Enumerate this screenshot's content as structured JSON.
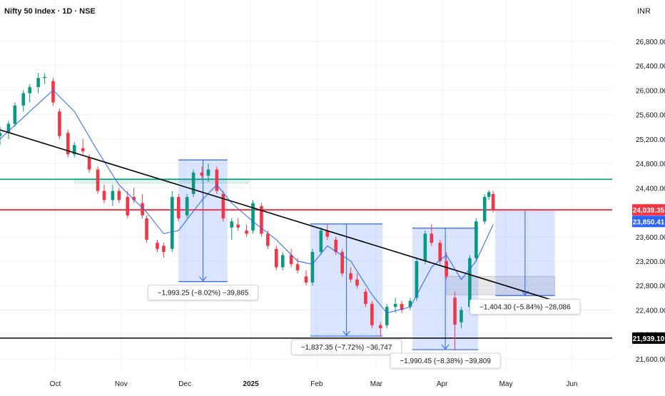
{
  "header": {
    "title": "Nifty 50 Index · 1D · NSE",
    "currency": "INR"
  },
  "colors": {
    "up": "#089981",
    "down": "#f23645",
    "ma": "#2962ff",
    "trendline": "#000000",
    "resistance": "#089981",
    "support_red": "#f23645",
    "support_black": "#000000",
    "measure_fill": "#2962ff",
    "badge_current": "#2962ff"
  },
  "chart_data": {
    "type": "candlestick",
    "symbol": "Nifty 50 Index",
    "interval": "1D",
    "exchange": "NSE",
    "ylim": [
      21400,
      27150
    ],
    "y_ticks": [
      21600,
      22000,
      22400,
      22800,
      23200,
      23600,
      24000,
      24400,
      24800,
      25200,
      25600,
      26000,
      26400,
      26800
    ],
    "y_tick_labels": [
      "21,600.00",
      "22,000.00",
      "22,400.00",
      "22,800.00",
      "23,200.00",
      "23,600.00",
      "24,000.00",
      "24,400.00",
      "24,800.00",
      "25,200.00",
      "25,600.00",
      "26,000.00",
      "26,400.00",
      "26,800.00"
    ],
    "x_ticks": [
      {
        "date": "2024-10-01",
        "label": "Oct",
        "bold": false
      },
      {
        "date": "2024-11-01",
        "label": "Nov",
        "bold": false
      },
      {
        "date": "2024-12-01",
        "label": "Dec",
        "bold": false
      },
      {
        "date": "2025-01-01",
        "label": "2025",
        "bold": true
      },
      {
        "date": "2025-02-01",
        "label": "Feb",
        "bold": false
      },
      {
        "date": "2025-03-01",
        "label": "Mar",
        "bold": false
      },
      {
        "date": "2025-04-01",
        "label": "Apr",
        "bold": false
      },
      {
        "date": "2025-05-01",
        "label": "May",
        "bold": false
      },
      {
        "date": "2025-06-01",
        "label": "Jun",
        "bold": false
      }
    ],
    "xlim": [
      "2024-09-05",
      "2025-06-20"
    ],
    "candles": [
      {
        "date": "2024-09-05",
        "o": 25250,
        "h": 25400,
        "l": 25100,
        "c": 25300
      },
      {
        "date": "2024-09-09",
        "o": 25300,
        "h": 25500,
        "l": 25200,
        "c": 25450
      },
      {
        "date": "2024-09-12",
        "o": 25450,
        "h": 25800,
        "l": 25400,
        "c": 25750
      },
      {
        "date": "2024-09-16",
        "o": 25750,
        "h": 26000,
        "l": 25650,
        "c": 25950
      },
      {
        "date": "2024-09-19",
        "o": 25950,
        "h": 26100,
        "l": 25800,
        "c": 26050
      },
      {
        "date": "2024-09-23",
        "o": 26050,
        "h": 26280,
        "l": 25950,
        "c": 26200
      },
      {
        "date": "2024-09-26",
        "o": 26200,
        "h": 26277,
        "l": 26100,
        "c": 26216
      },
      {
        "date": "2024-09-30",
        "o": 26150,
        "h": 26200,
        "l": 25750,
        "c": 25800
      },
      {
        "date": "2024-10-03",
        "o": 25650,
        "h": 25700,
        "l": 25200,
        "c": 25250
      },
      {
        "date": "2024-10-07",
        "o": 25300,
        "h": 25350,
        "l": 24900,
        "c": 24950
      },
      {
        "date": "2024-10-10",
        "o": 24950,
        "h": 25150,
        "l": 24900,
        "c": 25100
      },
      {
        "date": "2024-10-14",
        "o": 25050,
        "h": 25200,
        "l": 24950,
        "c": 25000
      },
      {
        "date": "2024-10-17",
        "o": 24900,
        "h": 24950,
        "l": 24650,
        "c": 24700
      },
      {
        "date": "2024-10-21",
        "o": 24700,
        "h": 24750,
        "l": 24300,
        "c": 24350
      },
      {
        "date": "2024-10-24",
        "o": 24350,
        "h": 24450,
        "l": 24150,
        "c": 24200
      },
      {
        "date": "2024-10-28",
        "o": 24200,
        "h": 24450,
        "l": 24100,
        "c": 24350
      },
      {
        "date": "2024-10-31",
        "o": 24350,
        "h": 24400,
        "l": 24150,
        "c": 24200
      },
      {
        "date": "2024-11-04",
        "o": 24250,
        "h": 24350,
        "l": 23900,
        "c": 23950
      },
      {
        "date": "2024-11-07",
        "o": 24250,
        "h": 24400,
        "l": 24150,
        "c": 24200
      },
      {
        "date": "2024-11-11",
        "o": 24150,
        "h": 24300,
        "l": 23900,
        "c": 23950
      },
      {
        "date": "2024-11-13",
        "o": 23900,
        "h": 23950,
        "l": 23500,
        "c": 23550
      },
      {
        "date": "2024-11-18",
        "o": 23500,
        "h": 23550,
        "l": 23350,
        "c": 23400
      },
      {
        "date": "2024-11-21",
        "o": 23450,
        "h": 23500,
        "l": 23260,
        "c": 23350
      },
      {
        "date": "2024-11-25",
        "o": 23400,
        "h": 24350,
        "l": 23350,
        "c": 24250
      },
      {
        "date": "2024-11-28",
        "o": 24250,
        "h": 24300,
        "l": 23850,
        "c": 23900
      },
      {
        "date": "2024-12-02",
        "o": 23950,
        "h": 24300,
        "l": 23900,
        "c": 24250
      },
      {
        "date": "2024-12-05",
        "o": 24300,
        "h": 24700,
        "l": 24250,
        "c": 24650
      },
      {
        "date": "2024-12-09",
        "o": 24650,
        "h": 24750,
        "l": 24550,
        "c": 24600
      },
      {
        "date": "2024-12-12",
        "o": 24600,
        "h": 24800,
        "l": 24500,
        "c": 24700
      },
      {
        "date": "2024-12-16",
        "o": 24700,
        "h": 24750,
        "l": 24300,
        "c": 24350
      },
      {
        "date": "2024-12-19",
        "o": 24300,
        "h": 24350,
        "l": 23850,
        "c": 23900
      },
      {
        "date": "2024-12-23",
        "o": 23750,
        "h": 23900,
        "l": 23550,
        "c": 23850
      },
      {
        "date": "2024-12-26",
        "o": 23800,
        "h": 23900,
        "l": 23700,
        "c": 23750
      },
      {
        "date": "2024-12-30",
        "o": 23700,
        "h": 23800,
        "l": 23600,
        "c": 23650
      },
      {
        "date": "2025-01-02",
        "o": 23700,
        "h": 24200,
        "l": 23650,
        "c": 24150
      },
      {
        "date": "2025-01-06",
        "o": 24100,
        "h": 24150,
        "l": 23600,
        "c": 23650
      },
      {
        "date": "2025-01-09",
        "o": 23650,
        "h": 23700,
        "l": 23400,
        "c": 23450
      },
      {
        "date": "2025-01-13",
        "o": 23400,
        "h": 23450,
        "l": 23050,
        "c": 23100
      },
      {
        "date": "2025-01-16",
        "o": 23100,
        "h": 23350,
        "l": 23050,
        "c": 23300
      },
      {
        "date": "2025-01-20",
        "o": 23300,
        "h": 23400,
        "l": 23100,
        "c": 23150
      },
      {
        "date": "2025-01-23",
        "o": 23150,
        "h": 23250,
        "l": 23000,
        "c": 23050
      },
      {
        "date": "2025-01-27",
        "o": 22950,
        "h": 23050,
        "l": 22800,
        "c": 22850
      },
      {
        "date": "2025-01-30",
        "o": 22850,
        "h": 23400,
        "l": 22800,
        "c": 23350
      },
      {
        "date": "2025-02-03",
        "o": 23350,
        "h": 23750,
        "l": 23300,
        "c": 23700
      },
      {
        "date": "2025-02-06",
        "o": 23700,
        "h": 23800,
        "l": 23550,
        "c": 23600
      },
      {
        "date": "2025-02-10",
        "o": 23550,
        "h": 23600,
        "l": 23300,
        "c": 23350
      },
      {
        "date": "2025-02-13",
        "o": 23350,
        "h": 23400,
        "l": 22950,
        "c": 23000
      },
      {
        "date": "2025-02-17",
        "o": 23000,
        "h": 23100,
        "l": 22850,
        "c": 22900
      },
      {
        "date": "2025-02-20",
        "o": 22900,
        "h": 23000,
        "l": 22750,
        "c": 22800
      },
      {
        "date": "2025-02-24",
        "o": 22700,
        "h": 22750,
        "l": 22450,
        "c": 22500
      },
      {
        "date": "2025-02-27",
        "o": 22500,
        "h": 22550,
        "l": 22100,
        "c": 22150
      },
      {
        "date": "2025-03-03",
        "o": 22150,
        "h": 22200,
        "l": 21964,
        "c": 22100
      },
      {
        "date": "2025-03-06",
        "o": 22150,
        "h": 22500,
        "l": 22100,
        "c": 22450
      },
      {
        "date": "2025-03-10",
        "o": 22450,
        "h": 22600,
        "l": 22350,
        "c": 22500
      },
      {
        "date": "2025-03-13",
        "o": 22500,
        "h": 22550,
        "l": 22350,
        "c": 22400
      },
      {
        "date": "2025-03-17",
        "o": 22450,
        "h": 22600,
        "l": 22400,
        "c": 22550
      },
      {
        "date": "2025-03-20",
        "o": 22600,
        "h": 23250,
        "l": 22550,
        "c": 23200
      },
      {
        "date": "2025-03-24",
        "o": 23200,
        "h": 23700,
        "l": 23150,
        "c": 23650
      },
      {
        "date": "2025-03-27",
        "o": 23650,
        "h": 23800,
        "l": 23450,
        "c": 23500
      },
      {
        "date": "2025-03-31",
        "o": 23500,
        "h": 23550,
        "l": 23150,
        "c": 23200
      },
      {
        "date": "2025-04-03",
        "o": 23200,
        "h": 23350,
        "l": 22900,
        "c": 22950
      },
      {
        "date": "2025-04-07",
        "o": 22600,
        "h": 22700,
        "l": 21743,
        "c": 22160
      },
      {
        "date": "2025-04-10",
        "o": 22200,
        "h": 22450,
        "l": 22100,
        "c": 22400
      },
      {
        "date": "2025-04-14",
        "o": 22450,
        "h": 23300,
        "l": 22400,
        "c": 23250
      },
      {
        "date": "2025-04-17",
        "o": 23250,
        "h": 23900,
        "l": 23200,
        "c": 23850
      },
      {
        "date": "2025-04-21",
        "o": 23850,
        "h": 24300,
        "l": 23800,
        "c": 24250
      },
      {
        "date": "2025-04-23",
        "o": 24250,
        "h": 24360,
        "l": 24200,
        "c": 24330
      },
      {
        "date": "2025-04-25",
        "o": 24300,
        "h": 24350,
        "l": 24000,
        "c": 24039
      }
    ],
    "moving_average": [
      {
        "date": "2024-09-05",
        "v": 25200
      },
      {
        "date": "2024-09-19",
        "v": 25650
      },
      {
        "date": "2024-09-30",
        "v": 26000
      },
      {
        "date": "2024-10-10",
        "v": 25650
      },
      {
        "date": "2024-10-21",
        "v": 25000
      },
      {
        "date": "2024-10-31",
        "v": 24450
      },
      {
        "date": "2024-11-13",
        "v": 24000
      },
      {
        "date": "2024-11-21",
        "v": 23650
      },
      {
        "date": "2024-11-28",
        "v": 23700
      },
      {
        "date": "2024-12-09",
        "v": 24200
      },
      {
        "date": "2024-12-16",
        "v": 24450
      },
      {
        "date": "2024-12-23",
        "v": 24150
      },
      {
        "date": "2025-01-02",
        "v": 23850
      },
      {
        "date": "2025-01-13",
        "v": 23550
      },
      {
        "date": "2025-01-23",
        "v": 23200
      },
      {
        "date": "2025-01-30",
        "v": 23150
      },
      {
        "date": "2025-02-06",
        "v": 23450
      },
      {
        "date": "2025-02-17",
        "v": 23200
      },
      {
        "date": "2025-02-27",
        "v": 22650
      },
      {
        "date": "2025-03-06",
        "v": 22350
      },
      {
        "date": "2025-03-17",
        "v": 22450
      },
      {
        "date": "2025-03-27",
        "v": 23100
      },
      {
        "date": "2025-04-03",
        "v": 23300
      },
      {
        "date": "2025-04-10",
        "v": 22900
      },
      {
        "date": "2025-04-17",
        "v": 23200
      },
      {
        "date": "2025-04-25",
        "v": 23800
      }
    ],
    "trendline": {
      "from": {
        "date": "2024-09-05",
        "v": 25350
      },
      "to": {
        "date": "2025-05-24",
        "v": 22550
      }
    },
    "horizontal_lines": [
      {
        "name": "resistance",
        "value": 24540,
        "color": "#089981"
      },
      {
        "name": "support-red",
        "value": 24039.35,
        "color": "#f23645"
      },
      {
        "name": "support-black",
        "value": 21939.1,
        "color": "#000000"
      }
    ],
    "zones": [
      {
        "name": "resistance-dotted-zone",
        "from": "2024-10-10",
        "to": "2024-12-31",
        "top": 24550,
        "bottom": 24480
      },
      {
        "name": "grey-zone",
        "from": "2025-04-03",
        "to": "2025-05-24",
        "top": 22950,
        "bottom": 22650
      }
    ],
    "measures": [
      {
        "from": "2024-11-28",
        "to": "2024-12-21",
        "top": 24858,
        "bottom": 22865,
        "label": "−1,993.25 (−8.02%) −39,865"
      },
      {
        "from": "2025-01-29",
        "to": "2025-03-04",
        "top": 23809,
        "bottom": 21972,
        "label": "−1,837.35 (−7.72%) −36,747"
      },
      {
        "from": "2025-03-18",
        "to": "2025-04-18",
        "top": 23740,
        "bottom": 21750,
        "label": "−1,990.45 (−8.38%) −39,809"
      },
      {
        "from": "2025-04-26",
        "to": "2025-05-24",
        "top": 24039,
        "bottom": 22635,
        "label": "−1,404.30 (−5.84%) −28,086"
      }
    ],
    "price_badges": [
      {
        "value": 24039.35,
        "label": "24,039.35",
        "color": "#f23645"
      },
      {
        "value": 23850.41,
        "label": "23,850.41",
        "color": "#2962ff"
      },
      {
        "value": 21939.1,
        "label": "21,939.10",
        "color": "#000000"
      }
    ]
  }
}
